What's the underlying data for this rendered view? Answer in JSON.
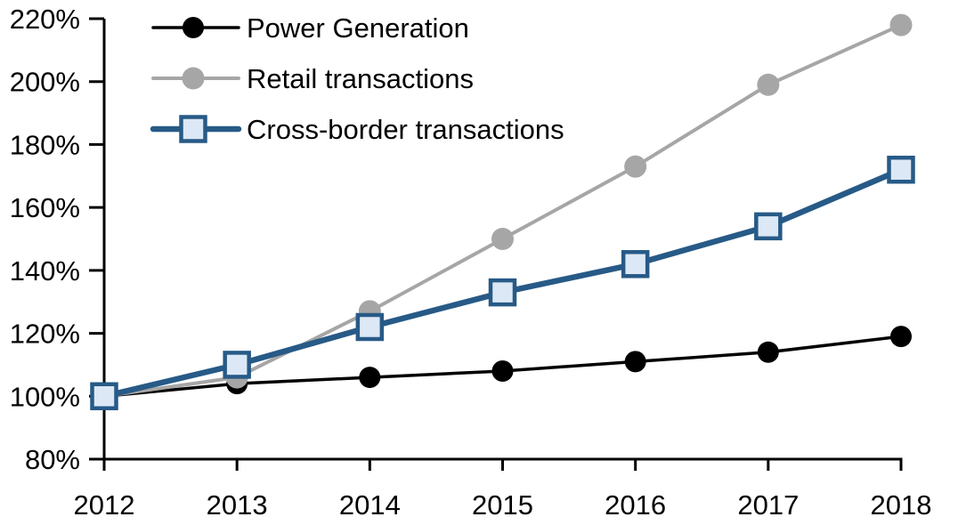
{
  "chart_data": {
    "type": "line",
    "title": "",
    "x_categories": [
      "2012",
      "2013",
      "2014",
      "2015",
      "2016",
      "2017",
      "2018"
    ],
    "series": [
      {
        "name": "Power Generation",
        "values": [
          100,
          104,
          106,
          108,
          111,
          114,
          119
        ],
        "line_color": "#000000",
        "line_width": 3.5,
        "marker": "circle",
        "marker_size": 24,
        "marker_fill": "#000000",
        "marker_stroke": "none",
        "marker_stroke_width": 0
      },
      {
        "name": "Retail transactions",
        "values": [
          100,
          106,
          127,
          150,
          173,
          199,
          218
        ],
        "line_color": "#A6A6A6",
        "line_width": 4,
        "marker": "circle",
        "marker_size": 25,
        "marker_fill": "#A6A6A6",
        "marker_stroke": "none",
        "marker_stroke_width": 0
      },
      {
        "name": "Cross-border transactions",
        "values": [
          100,
          110,
          122,
          133,
          142,
          154,
          172
        ],
        "line_color": "#275A87",
        "line_width": 6.5,
        "marker": "square",
        "marker_size": 27,
        "marker_fill": "#DCE8F5",
        "marker_stroke": "#275A87",
        "marker_stroke_width": 4.5
      }
    ],
    "y_axis": {
      "min": 80,
      "max": 220,
      "step": 20,
      "suffix": "%",
      "labels": [
        "80%",
        "100%",
        "120%",
        "140%",
        "160%",
        "180%",
        "200%",
        "220%"
      ]
    },
    "x_axis": {
      "labels": [
        "2012",
        "2013",
        "2014",
        "2015",
        "2016",
        "2017",
        "2018"
      ]
    },
    "legend": {
      "position": "top-left-inside",
      "entries": [
        "Power Generation",
        "Retail transactions",
        "Cross-border transactions"
      ]
    },
    "grid": false,
    "background_color": "#FFFFFF",
    "axis_color": "#000000"
  }
}
